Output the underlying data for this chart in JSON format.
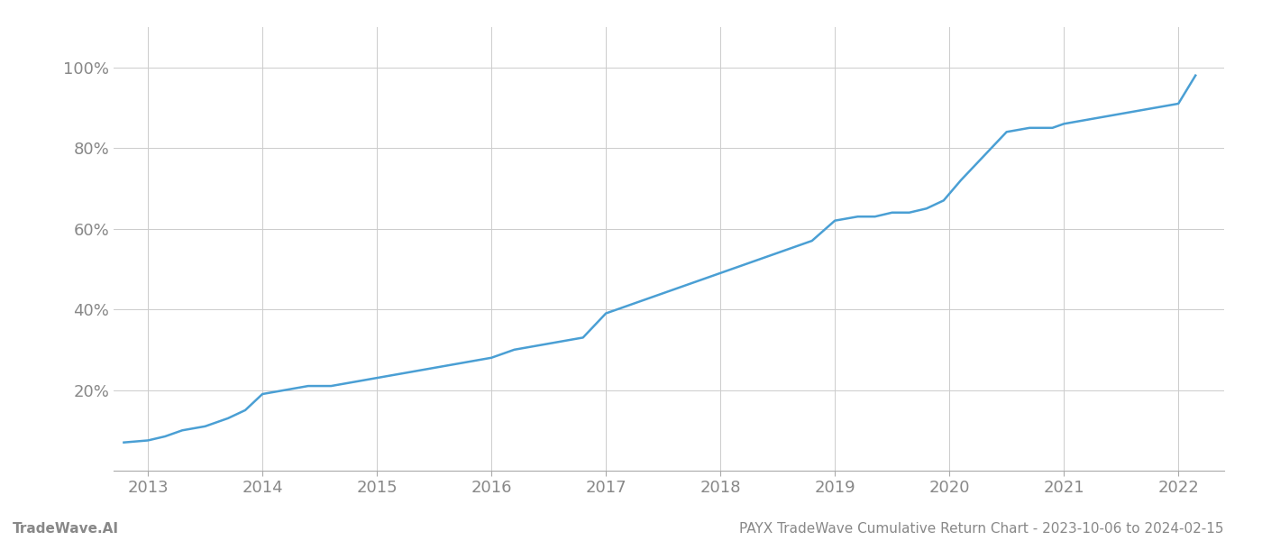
{
  "title": "PAYX TradeWave Cumulative Return Chart - 2023-10-06 to 2024-02-15",
  "watermark": "TradeWave.AI",
  "line_color": "#4a9fd4",
  "background_color": "#ffffff",
  "grid_color": "#cccccc",
  "x_years": [
    2013,
    2014,
    2015,
    2016,
    2017,
    2018,
    2019,
    2020,
    2021,
    2022
  ],
  "x_data": [
    2012.79,
    2013.0,
    2013.15,
    2013.3,
    2013.5,
    2013.7,
    2013.85,
    2014.0,
    2014.2,
    2014.4,
    2014.6,
    2014.8,
    2015.0,
    2015.2,
    2015.4,
    2015.6,
    2015.8,
    2016.0,
    2016.2,
    2016.4,
    2016.6,
    2016.8,
    2017.0,
    2017.2,
    2017.4,
    2017.6,
    2017.8,
    2018.0,
    2018.2,
    2018.4,
    2018.6,
    2018.8,
    2019.0,
    2019.2,
    2019.35,
    2019.5,
    2019.65,
    2019.8,
    2019.95,
    2020.1,
    2020.3,
    2020.5,
    2020.7,
    2020.9,
    2021.0,
    2021.2,
    2021.4,
    2021.6,
    2021.8,
    2022.0,
    2022.15
  ],
  "y_data": [
    7,
    7.5,
    8.5,
    10,
    11,
    13,
    15,
    19,
    20,
    21,
    21,
    22,
    23,
    24,
    25,
    26,
    27,
    28,
    30,
    31,
    32,
    33,
    39,
    41,
    43,
    45,
    47,
    49,
    51,
    53,
    55,
    57,
    62,
    63,
    63,
    64,
    64,
    65,
    67,
    72,
    78,
    84,
    85,
    85,
    86,
    87,
    88,
    89,
    90,
    91,
    98
  ],
  "ylim": [
    0,
    110
  ],
  "xlim": [
    2012.7,
    2022.4
  ],
  "yticks": [
    20,
    40,
    60,
    80,
    100
  ],
  "ytick_labels": [
    "20%",
    "40%",
    "60%",
    "80%",
    "100%"
  ],
  "title_fontsize": 11,
  "watermark_fontsize": 11,
  "tick_color": "#888888",
  "tick_fontsize": 13,
  "line_width": 1.8,
  "spine_color": "#aaaaaa"
}
